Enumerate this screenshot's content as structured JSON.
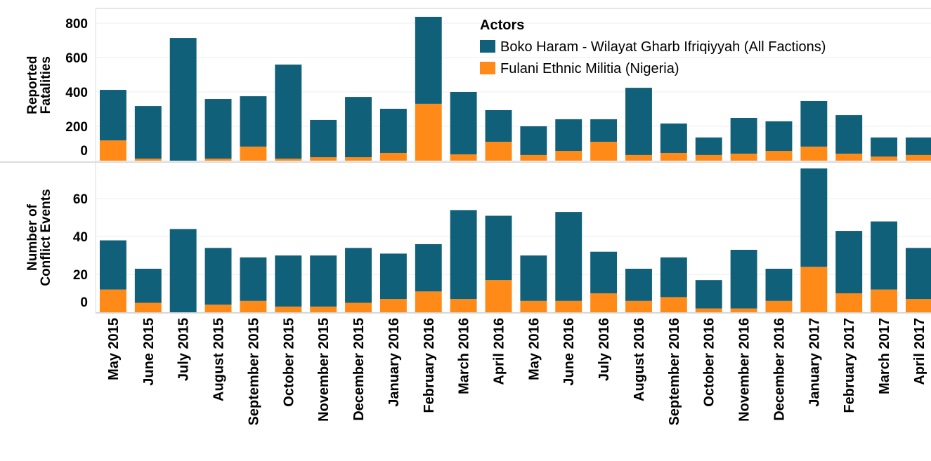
{
  "chart_data": {
    "type": "bar",
    "stacked": true,
    "categories": [
      "May 2015",
      "June 2015",
      "July 2015",
      "August 2015",
      "September 2015",
      "October 2015",
      "November 2015",
      "December 2015",
      "January 2016",
      "February 2016",
      "March 2016",
      "April 2016",
      "May 2016",
      "June 2016",
      "July 2016",
      "August 2016",
      "September 2016",
      "October 2016",
      "November 2016",
      "December 2016",
      "January 2017",
      "February 2017",
      "March 2017",
      "April 2017"
    ],
    "legend": {
      "title": "Actors",
      "corner": "top-right"
    },
    "series": [
      {
        "name": "Boko Haram - Wilayat Gharb Ifriqiyyah (All Factions)",
        "color": "#0f6078"
      },
      {
        "name": "Fulani Ethnic Militia (Nigeria)",
        "color": "#ff8a17"
      }
    ],
    "grid": true,
    "panels": [
      {
        "ylabel": [
          "Reported",
          "Fatalities"
        ],
        "ylim": [
          0,
          880
        ],
        "yticks": [
          0,
          200,
          400,
          600,
          800
        ],
        "series": [
          {
            "values": [
              294,
              306,
              714,
              347,
              293,
              547,
              217,
              351,
              257,
              506,
              363,
              184,
              167,
              184,
              131,
              391,
              171,
              102,
              208,
              172,
              265,
              224,
              111,
              102
            ]
          },
          {
            "values": [
              118,
              12,
              0,
              12,
              82,
              12,
              20,
              20,
              45,
              331,
              37,
              110,
              33,
              57,
              110,
              33,
              45,
              33,
              41,
              57,
              82,
              41,
              24,
              33
            ]
          }
        ]
      },
      {
        "ylabel": [
          "Number of",
          "Conflict Events"
        ],
        "ylim": [
          0,
          79
        ],
        "yticks": [
          0,
          20,
          40,
          60
        ],
        "series": [
          {
            "values": [
              26,
              18,
              44,
              30,
              23,
              27,
              27,
              29,
              24,
              25,
              47,
              34,
              24,
              47,
              22,
              17,
              21,
              15,
              31,
              17,
              52,
              33,
              36,
              27
            ]
          },
          {
            "values": [
              12,
              5,
              0,
              4,
              6,
              3,
              3,
              5,
              7,
              11,
              7,
              17,
              6,
              6,
              10,
              6,
              8,
              2,
              2,
              6,
              24,
              10,
              12,
              7
            ]
          }
        ]
      }
    ]
  }
}
